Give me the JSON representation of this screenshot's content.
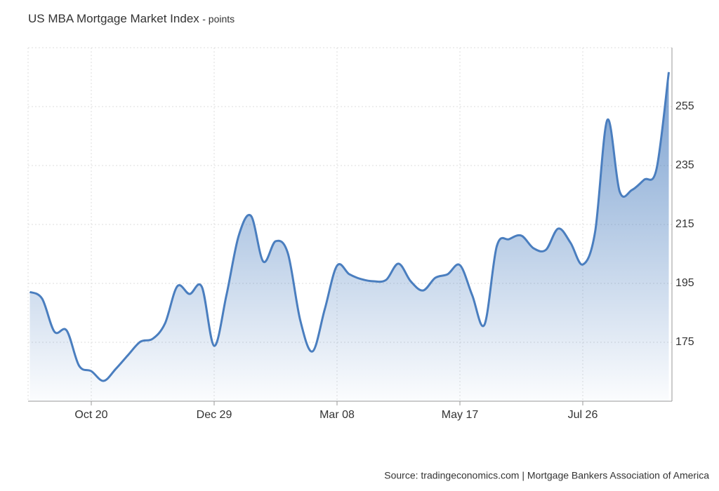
{
  "chart_data": {
    "type": "area",
    "title": "US MBA Mortgage Market Index",
    "subtitle": "- points",
    "source": "Source: tradingeconomics.com | Mortgage Bankers Association of America",
    "categories": [
      null,
      null,
      null,
      null,
      null,
      "Oct 20",
      null,
      null,
      null,
      null,
      null,
      null,
      null,
      null,
      null,
      "Dec 29",
      null,
      null,
      null,
      null,
      null,
      null,
      null,
      null,
      null,
      "Mar 08",
      null,
      null,
      null,
      null,
      null,
      null,
      null,
      null,
      null,
      "May 17",
      null,
      null,
      null,
      null,
      null,
      null,
      null,
      null,
      null,
      "Jul 26",
      null,
      null,
      null,
      null,
      null,
      null,
      null
    ],
    "series": [
      {
        "name": "US MBA Mortgage Market Index",
        "color": "#4a7ebf",
        "values": [
          192.1,
          189.8,
          178.6,
          179.0,
          167.1,
          165.2,
          161.9,
          166.0,
          170.7,
          175.2,
          176.2,
          181.4,
          194.0,
          191.4,
          193.8,
          173.8,
          191.0,
          211.2,
          217.9,
          202.4,
          209.3,
          205.2,
          182.6,
          171.9,
          186.2,
          201.0,
          198.1,
          196.4,
          195.7,
          196.2,
          201.7,
          195.7,
          192.6,
          196.9,
          198.1,
          201.2,
          191.0,
          181.0,
          207.6,
          210.0,
          211.2,
          206.9,
          206.4,
          213.6,
          208.8,
          201.4,
          212.4,
          250.5,
          226.2,
          226.7,
          230.2,
          233.8,
          266.7
        ]
      }
    ],
    "ylim": [
      155,
      275
    ],
    "yticks": [
      175,
      195,
      215,
      235,
      255
    ],
    "grid": true
  }
}
